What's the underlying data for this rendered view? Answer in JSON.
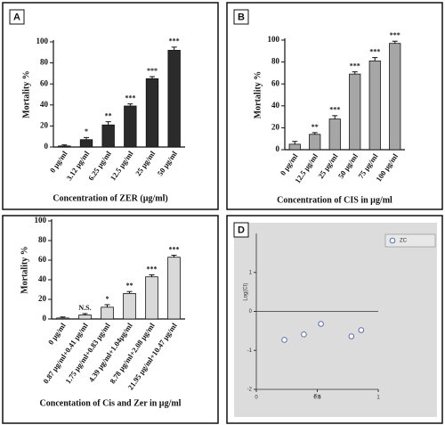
{
  "chart_data": [
    {
      "type": "bar",
      "panel_label": "A",
      "ylabel": "Mortality %",
      "xlabel": "Concentration of ZER (µg/ml)",
      "categories": [
        "0 µg/ml",
        "3.12 µg/ml",
        "6.25 µg/ml",
        "12.5 µg/ml",
        "25 µg/ml",
        "50 µg/ml"
      ],
      "values": [
        1,
        7,
        21,
        39,
        65,
        92
      ],
      "errors": [
        1,
        2,
        3,
        2,
        2,
        3
      ],
      "labels": [
        null,
        "*",
        "**",
        "***",
        "***",
        "***"
      ],
      "color": "#2b2b2b",
      "ylim": [
        0,
        100
      ],
      "yticks": [
        0,
        20,
        40,
        60,
        80,
        100
      ],
      "grid": false
    },
    {
      "type": "bar",
      "panel_label": "B",
      "ylabel": "Mortality %",
      "xlabel": "Concentration of CIS in µg/ml",
      "categories": [
        "0 µg/ml",
        "12.5 µg/ml",
        "25 µg/ml",
        "50 µg/ml",
        "75 µg/ml",
        "100 µg/ml"
      ],
      "values": [
        5,
        14,
        28,
        69,
        81,
        97
      ],
      "errors": [
        2.5,
        1.5,
        3,
        2,
        3,
        2
      ],
      "labels": [
        null,
        "**",
        "***",
        "***",
        "***",
        "***"
      ],
      "color": "#a6a6a6",
      "ylim": [
        0,
        100
      ],
      "yticks": [
        0,
        20,
        40,
        60,
        80,
        100
      ],
      "grid": false
    },
    {
      "type": "bar",
      "ylabel": "Mortality %",
      "xlabel": "Concentation of Cis and Zer in µg/ml",
      "categories": [
        "0 µg/ml",
        "0.87 µg/ml+0.41 µg/ml",
        "1.75 µg/ml+0.83 µg/ml",
        "4.39 µg/ml+1.04µg/ml",
        "8.78 µg/ml+2.08 µg/ml",
        "21.95 µg/ml+10.47 µg/ml"
      ],
      "values": [
        1,
        4,
        12,
        26,
        43,
        63
      ],
      "errors": [
        1,
        1.5,
        2.5,
        2,
        2,
        2
      ],
      "labels": [
        null,
        "N.S.",
        "*",
        "**",
        "***",
        "***"
      ],
      "color": "#d9d9d9",
      "ylim": [
        0,
        100
      ],
      "yticks": [
        0,
        20,
        40,
        60,
        80,
        100
      ],
      "grid": false
    },
    {
      "type": "scatter",
      "panel_label": "D",
      "ylabel": "Log(CI)",
      "xlabel": "Fa",
      "series": [
        {
          "name": "ZC",
          "color": "#5b6fb0",
          "x": [
            0.23,
            0.39,
            0.53,
            0.78,
            0.86
          ],
          "values": [
            -0.73,
            -0.59,
            -0.32,
            -0.64,
            -0.48
          ]
        }
      ],
      "xlim": [
        0,
        1
      ],
      "xticks": [
        0,
        0.5,
        1
      ],
      "ylim": [
        -2,
        2
      ],
      "yticks": [
        -2,
        -1,
        0,
        1
      ],
      "legend": "top-right",
      "grid": false
    }
  ]
}
